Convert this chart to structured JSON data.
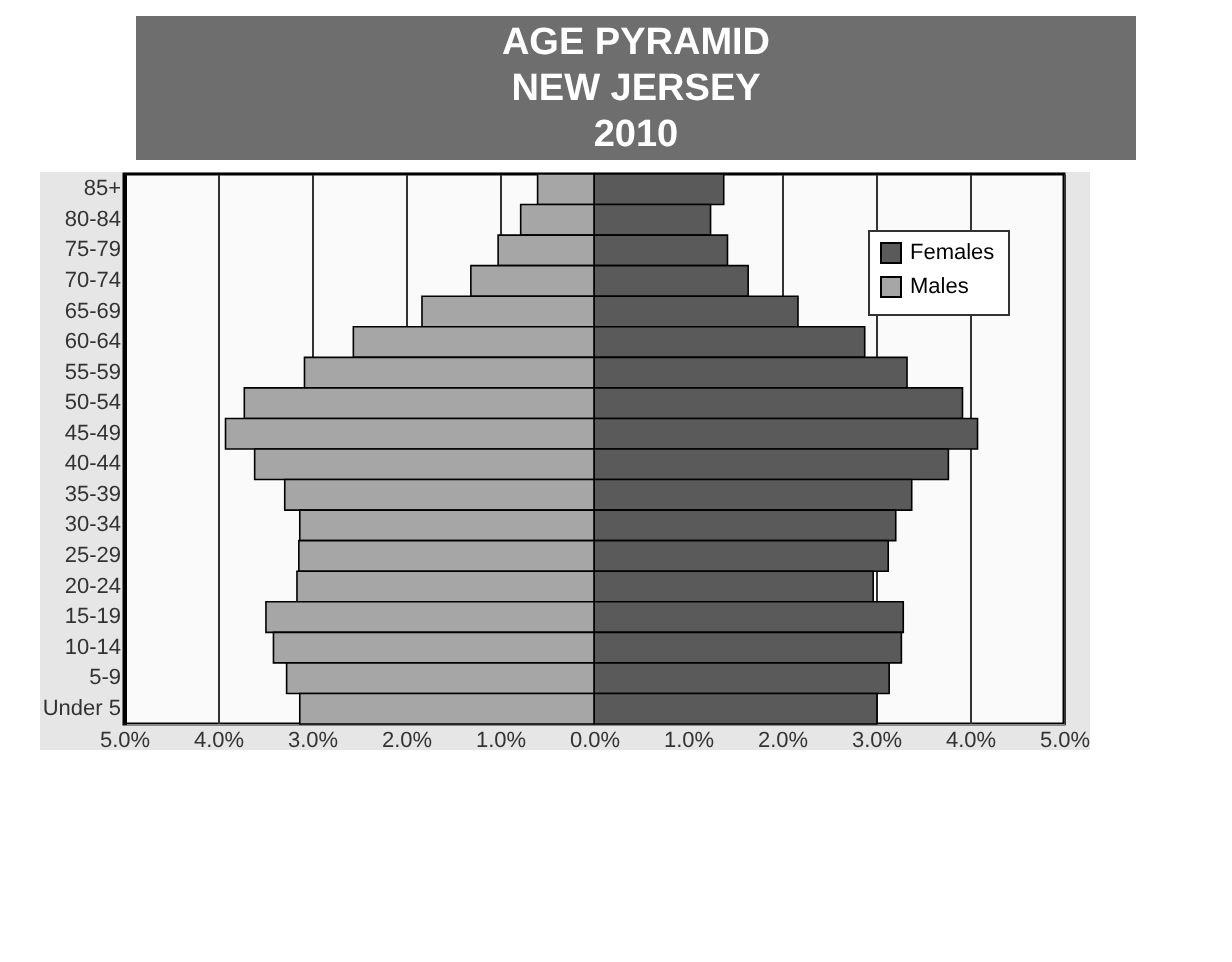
{
  "chart_data": {
    "type": "bar",
    "orientation": "horizontal",
    "title": "AGE PYRAMID\nNEW JERSEY\n2010",
    "categories": [
      "85+",
      "80-84",
      "75-79",
      "70-74",
      "65-69",
      "60-64",
      "55-59",
      "50-54",
      "45-49",
      "40-44",
      "35-39",
      "30-34",
      "25-29",
      "20-24",
      "15-19",
      "10-14",
      "5-9",
      "Under 5"
    ],
    "series": [
      {
        "name": "Females",
        "color": "#5a5a5a",
        "values": [
          1.38,
          1.24,
          1.42,
          1.64,
          2.17,
          2.88,
          3.33,
          3.92,
          4.08,
          3.77,
          3.38,
          3.21,
          3.13,
          2.97,
          3.29,
          3.27,
          3.14,
          3.01
        ]
      },
      {
        "name": "Males",
        "color": "#a6a6a6",
        "values": [
          -0.6,
          -0.78,
          -1.02,
          -1.31,
          -1.83,
          -2.56,
          -3.08,
          -3.72,
          -3.92,
          -3.61,
          -3.29,
          -3.13,
          -3.14,
          -3.16,
          -3.49,
          -3.41,
          -3.27,
          -3.13
        ]
      }
    ],
    "xlim": [
      -5,
      5
    ],
    "xticks": [
      {
        "value": -5,
        "label": "5.0%"
      },
      {
        "value": -4,
        "label": "4.0%"
      },
      {
        "value": -3,
        "label": "3.0%"
      },
      {
        "value": -2,
        "label": "2.0%"
      },
      {
        "value": -1,
        "label": "1.0%"
      },
      {
        "value": 0,
        "label": "0.0%"
      },
      {
        "value": 1,
        "label": "1.0%"
      },
      {
        "value": 2,
        "label": "2.0%"
      },
      {
        "value": 3,
        "label": "3.0%"
      },
      {
        "value": 4,
        "label": "4.0%"
      },
      {
        "value": 5,
        "label": "5.0%"
      }
    ],
    "stacked": true,
    "grid": "x",
    "legend": "top right"
  }
}
